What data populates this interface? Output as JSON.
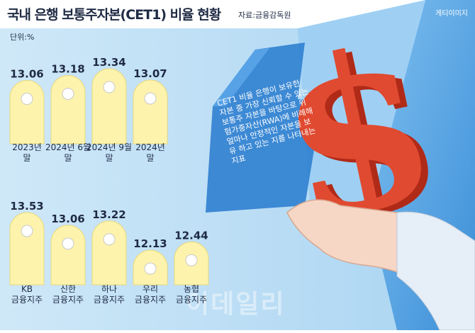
{
  "title": "국내 은행 보통주자본(CET1) 비율 현황",
  "source": "자료:금융감독원",
  "credit": "게티이미지",
  "unit": "단위:%",
  "note": "CET1 비율 은행이 보유한 자본 중 가장 신뢰할 수 있는 보통주 자본을 바탕으로 위험가중자산(RWA)에 비례해 얼마나 안정적인 자본을 보유 하고 있는 지를 나타내는 지표",
  "watermark": "이데일리",
  "colors": {
    "bar": "#fdf3ad",
    "bar_stroke": "#e8d97a",
    "dot": "#ffffff",
    "text": "#1f2a44",
    "bg_left": "#bfe0f6",
    "bg_right": "#5aa8e6",
    "arrow": "#2f7fd0",
    "dollar": "#d8412b"
  },
  "chart_data": [
    {
      "type": "bar",
      "categories": [
        "2023년 말",
        "2024년 6월 말",
        "2024년 9월 말",
        "2024년 말"
      ],
      "values": [
        13.06,
        13.18,
        13.34,
        13.07
      ]
    },
    {
      "type": "bar",
      "categories": [
        "KB 금융지주",
        "신한 금융지주",
        "하나 금융지주",
        "우리 금융지주",
        "농협 금융지주"
      ],
      "values": [
        13.53,
        13.06,
        13.22,
        12.13,
        12.44
      ]
    }
  ]
}
